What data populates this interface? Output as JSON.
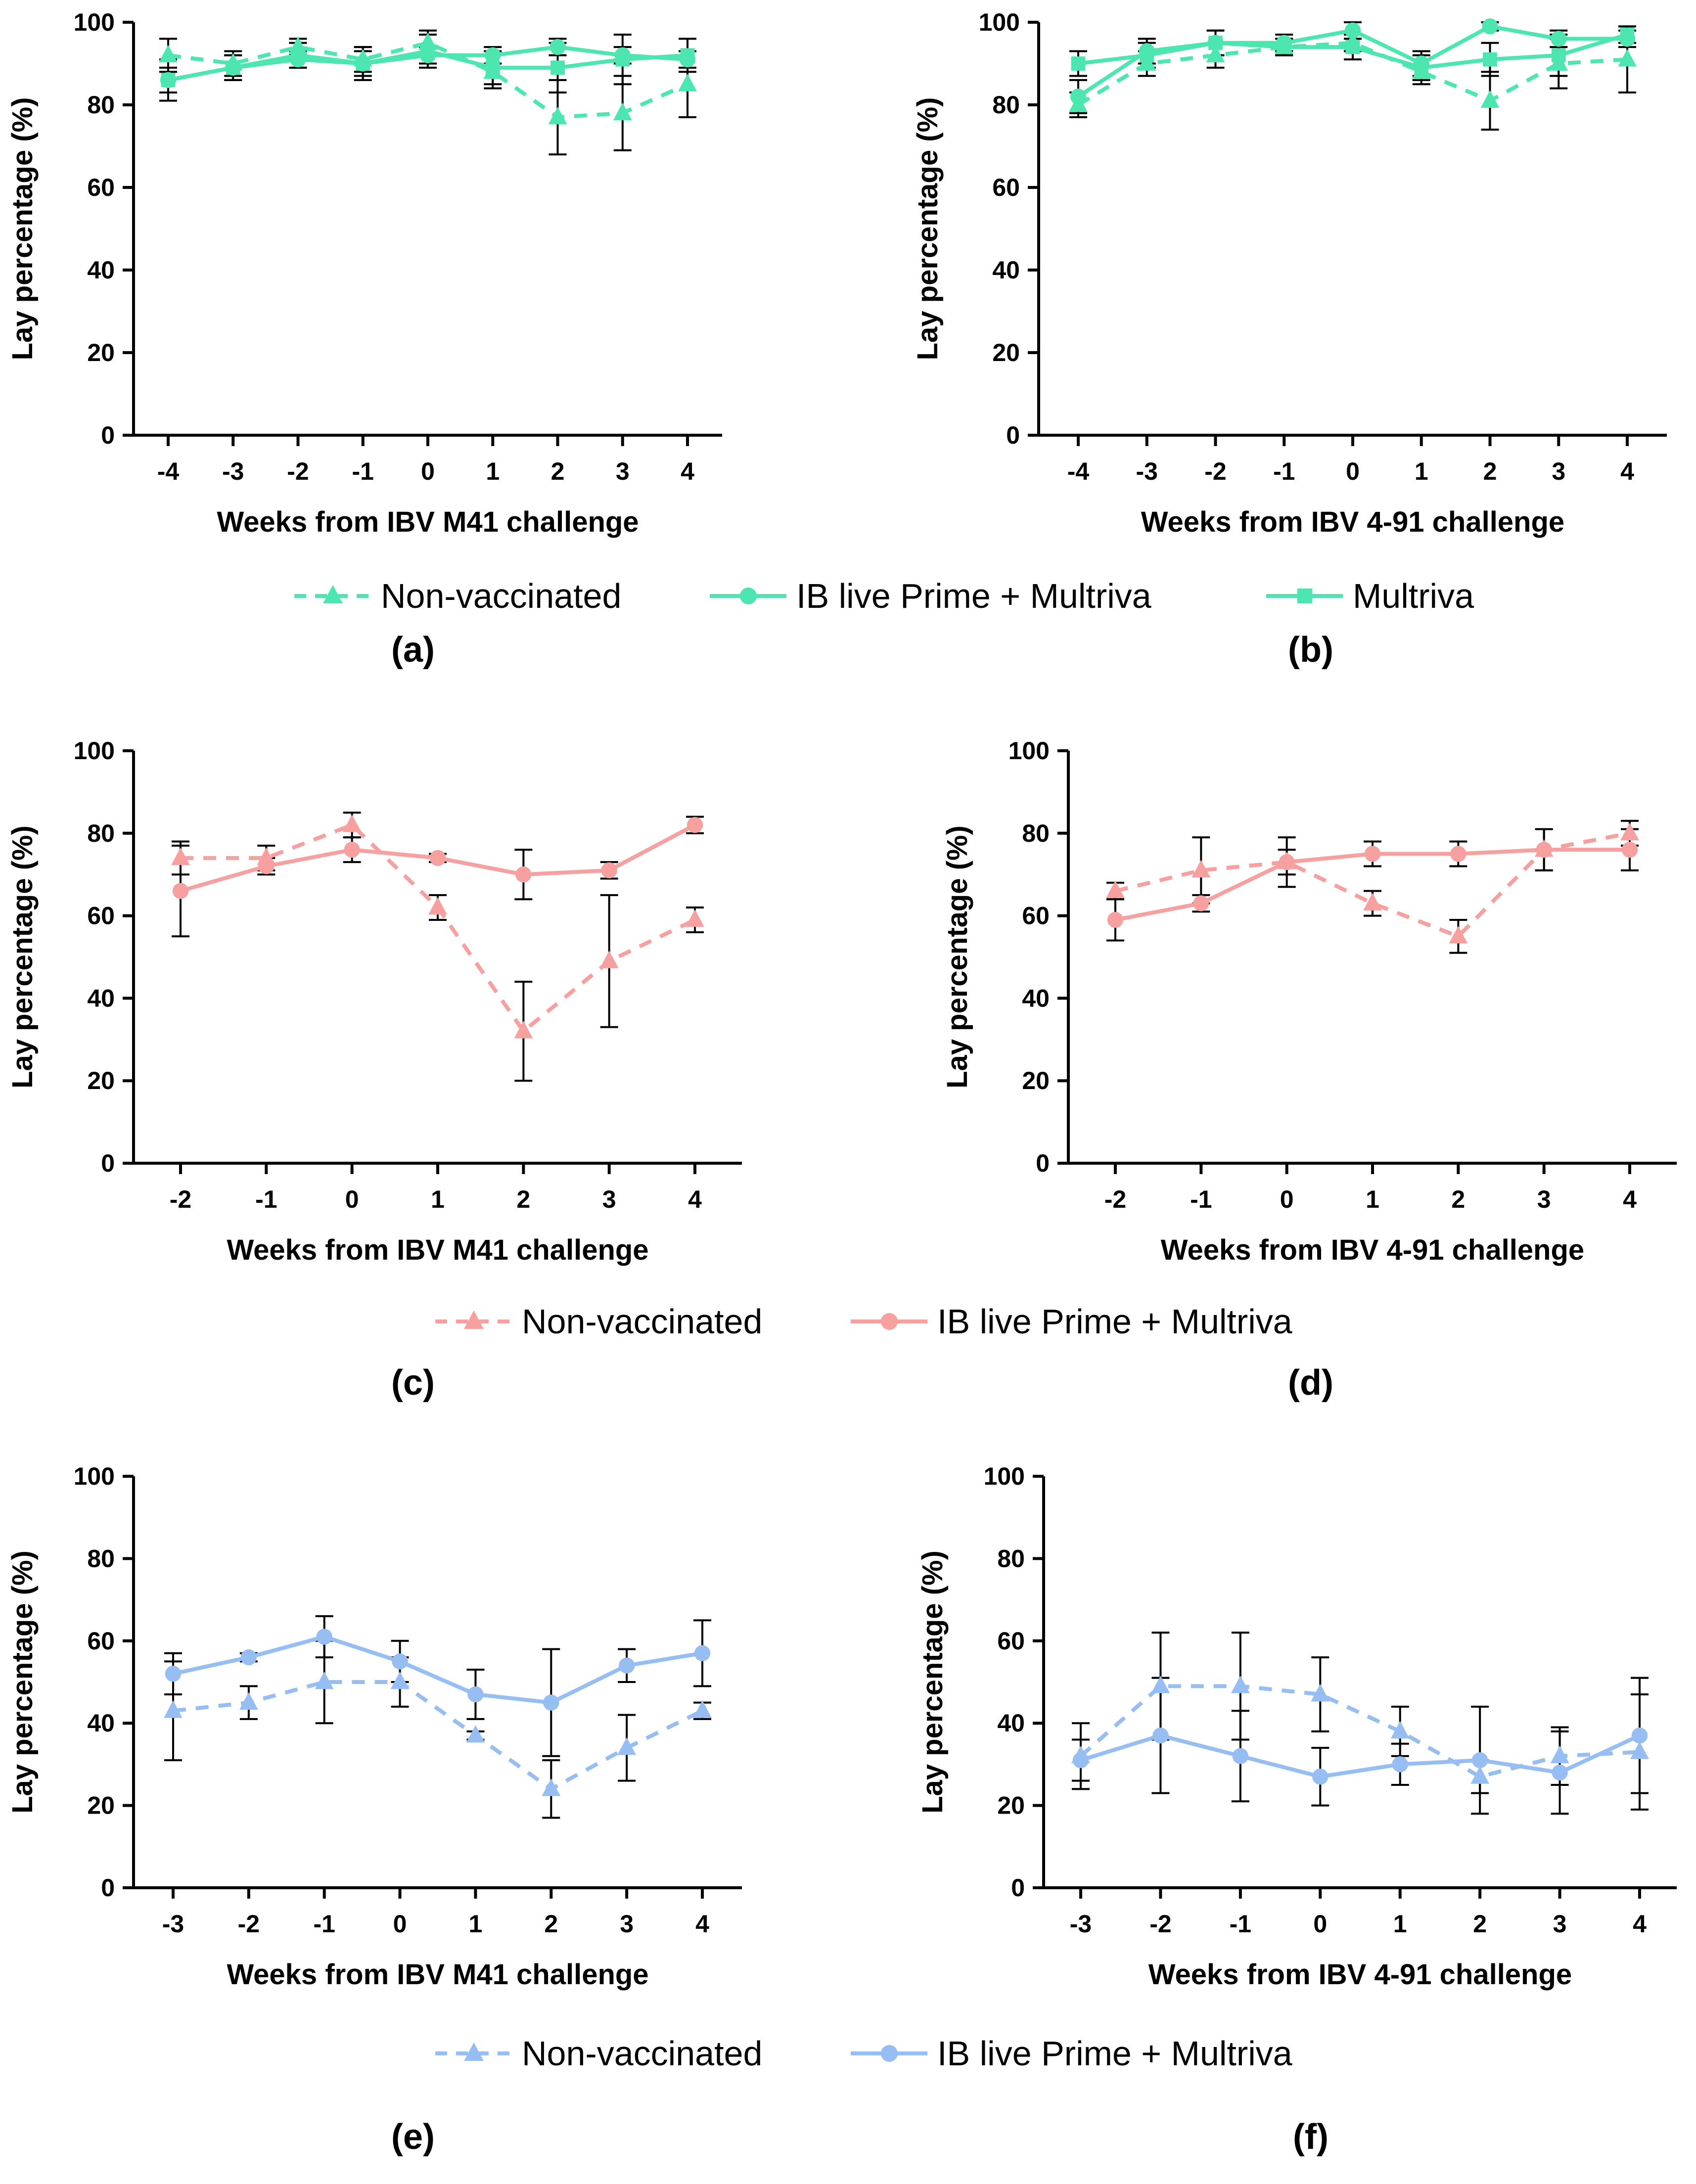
{
  "figure": {
    "colors": {
      "green": "#4DE6B1",
      "red": "#F6A0A0",
      "blue": "#96BEF2",
      "axis": "#000000",
      "error_bar": "#000000"
    },
    "ylabel": "Lay percentage (%)",
    "rows": [
      {
        "legend": [
          {
            "name": "Non-vaccinated",
            "style": "dashed",
            "marker": "triangle"
          },
          {
            "name": "IB live Prime + Multriva",
            "style": "solid",
            "marker": "circle"
          },
          {
            "name": "Multriva",
            "style": "solid",
            "marker": "square"
          }
        ]
      },
      {
        "legend": [
          {
            "name": "Non-vaccinated",
            "style": "dashed",
            "marker": "triangle"
          },
          {
            "name": "IB live Prime + Multriva",
            "style": "solid",
            "marker": "circle"
          }
        ]
      },
      {
        "legend": [
          {
            "name": "Non-vaccinated",
            "style": "dashed",
            "marker": "triangle"
          },
          {
            "name": "IB live Prime + Multriva",
            "style": "solid",
            "marker": "circle"
          }
        ]
      }
    ]
  },
  "chart_data": [
    {
      "panel": "(a)",
      "type": "line",
      "color": "green",
      "xlabel": "Weeks from IBV M41 challenge",
      "ylabel": "Lay percentage (%)",
      "ylim": [
        0,
        100
      ],
      "yticks": [
        0,
        20,
        40,
        60,
        80,
        100
      ],
      "x": [
        -4,
        -3,
        -2,
        -1,
        0,
        1,
        2,
        3,
        4
      ],
      "series": [
        {
          "name": "Non-vaccinated",
          "style": "dashed",
          "marker": "triangle",
          "values": [
            92,
            90,
            94,
            91,
            95,
            88,
            77,
            78,
            85
          ],
          "errors": [
            4,
            3,
            2,
            3,
            3,
            4,
            9,
            9,
            8
          ]
        },
        {
          "name": "IB live Prime + Multriva",
          "style": "solid",
          "marker": "circle",
          "values": [
            86,
            89,
            91,
            90,
            92,
            92,
            94,
            92,
            91
          ],
          "errors": [
            3,
            3,
            2,
            3,
            2,
            2,
            2,
            2,
            2
          ]
        },
        {
          "name": "Multriva",
          "style": "solid",
          "marker": "square",
          "values": [
            86,
            89,
            92,
            90,
            93,
            89,
            89,
            91,
            92
          ],
          "errors": [
            5,
            3,
            3,
            4,
            4,
            4,
            6,
            6,
            4
          ]
        }
      ]
    },
    {
      "panel": "(b)",
      "type": "line",
      "color": "green",
      "xlabel": "Weeks from IBV 4-91 challenge",
      "ylabel": "Lay percentage (%)",
      "ylim": [
        0,
        100
      ],
      "yticks": [
        0,
        20,
        40,
        60,
        80,
        100
      ],
      "x": [
        -4,
        -3,
        -2,
        -1,
        0,
        1,
        2,
        3,
        4
      ],
      "series": [
        {
          "name": "Non-vaccinated",
          "style": "dashed",
          "marker": "triangle",
          "values": [
            80,
            90,
            92,
            94,
            95,
            88,
            81,
            90,
            91
          ],
          "errors": [
            3,
            3,
            3,
            2,
            2,
            3,
            7,
            6,
            8
          ]
        },
        {
          "name": "IB live Prime + Multriva",
          "style": "solid",
          "marker": "circle",
          "values": [
            82,
            93,
            95,
            95,
            98,
            90,
            99,
            96,
            96
          ],
          "errors": [
            4,
            3,
            3,
            2,
            2,
            3,
            1,
            2,
            2
          ]
        },
        {
          "name": "Multriva",
          "style": "solid",
          "marker": "square",
          "values": [
            90,
            92,
            95,
            94,
            94,
            89,
            91,
            92,
            97
          ],
          "errors": [
            3,
            3,
            3,
            2,
            3,
            3,
            4,
            5,
            2
          ]
        }
      ]
    },
    {
      "panel": "(c)",
      "type": "line",
      "color": "red",
      "xlabel": "Weeks from IBV M41 challenge",
      "ylabel": "Lay percentage (%)",
      "ylim": [
        0,
        100
      ],
      "yticks": [
        0,
        20,
        40,
        60,
        80,
        100
      ],
      "x": [
        -2,
        -1,
        0,
        1,
        2,
        3,
        4
      ],
      "series": [
        {
          "name": "Non-vaccinated",
          "style": "dashed",
          "marker": "triangle",
          "values": [
            74,
            74,
            82,
            62,
            32,
            49,
            59
          ],
          "errors": [
            4,
            3,
            3,
            3,
            12,
            16,
            3
          ]
        },
        {
          "name": "IB live Prime + Multriva",
          "style": "solid",
          "marker": "circle",
          "values": [
            66,
            72,
            76,
            74,
            70,
            71,
            82
          ],
          "errors": [
            11,
            2,
            3,
            1,
            6,
            2,
            2
          ]
        }
      ]
    },
    {
      "panel": "(d)",
      "type": "line",
      "color": "red",
      "xlabel": "Weeks from IBV 4-91 challenge",
      "ylabel": "Lay percentage (%)",
      "ylim": [
        0,
        100
      ],
      "yticks": [
        0,
        20,
        40,
        60,
        80,
        100
      ],
      "x": [
        -2,
        -1,
        0,
        1,
        2,
        3,
        4
      ],
      "series": [
        {
          "name": "Non-vaccinated",
          "style": "dashed",
          "marker": "triangle",
          "values": [
            66,
            71,
            73,
            63,
            55,
            76,
            80
          ],
          "errors": [
            2,
            8,
            6,
            3,
            4,
            5,
            3
          ]
        },
        {
          "name": "IB live Prime + Multriva",
          "style": "solid",
          "marker": "circle",
          "values": [
            59,
            63,
            73,
            75,
            75,
            76,
            76
          ],
          "errors": [
            5,
            2,
            3,
            3,
            3,
            5,
            5
          ]
        }
      ]
    },
    {
      "panel": "(e)",
      "type": "line",
      "color": "blue",
      "xlabel": "Weeks from IBV M41 challenge",
      "ylabel": "Lay percentage (%)",
      "ylim": [
        0,
        100
      ],
      "yticks": [
        0,
        20,
        40,
        60,
        80,
        100
      ],
      "x": [
        -3,
        -2,
        -1,
        0,
        1,
        2,
        3,
        4
      ],
      "series": [
        {
          "name": "Non-vaccinated",
          "style": "dashed",
          "marker": "triangle",
          "values": [
            43,
            45,
            50,
            50,
            37,
            24,
            34,
            43
          ],
          "errors": [
            12,
            4,
            10,
            6,
            1,
            7,
            8,
            2
          ]
        },
        {
          "name": "IB live Prime + Multriva",
          "style": "solid",
          "marker": "circle",
          "values": [
            52,
            56,
            61,
            55,
            47,
            45,
            54,
            57
          ],
          "errors": [
            5,
            1,
            5,
            5,
            6,
            13,
            4,
            8
          ]
        }
      ]
    },
    {
      "panel": "(f)",
      "type": "line",
      "color": "blue",
      "xlabel": "Weeks from IBV 4-91 challenge",
      "ylabel": "Lay percentage (%)",
      "ylim": [
        0,
        100
      ],
      "yticks": [
        0,
        20,
        40,
        60,
        80,
        100
      ],
      "x": [
        -3,
        -2,
        -1,
        0,
        1,
        2,
        3,
        4
      ],
      "series": [
        {
          "name": "Non-vaccinated",
          "style": "dashed",
          "marker": "triangle",
          "values": [
            32,
            49,
            49,
            47,
            38,
            27,
            32,
            33
          ],
          "errors": [
            8,
            13,
            13,
            9,
            6,
            4,
            7,
            14
          ]
        },
        {
          "name": "IB live Prime + Multriva",
          "style": "solid",
          "marker": "circle",
          "values": [
            31,
            37,
            32,
            27,
            30,
            31,
            28,
            37
          ],
          "errors": [
            5,
            14,
            11,
            7,
            5,
            13,
            10,
            14
          ]
        }
      ]
    }
  ]
}
